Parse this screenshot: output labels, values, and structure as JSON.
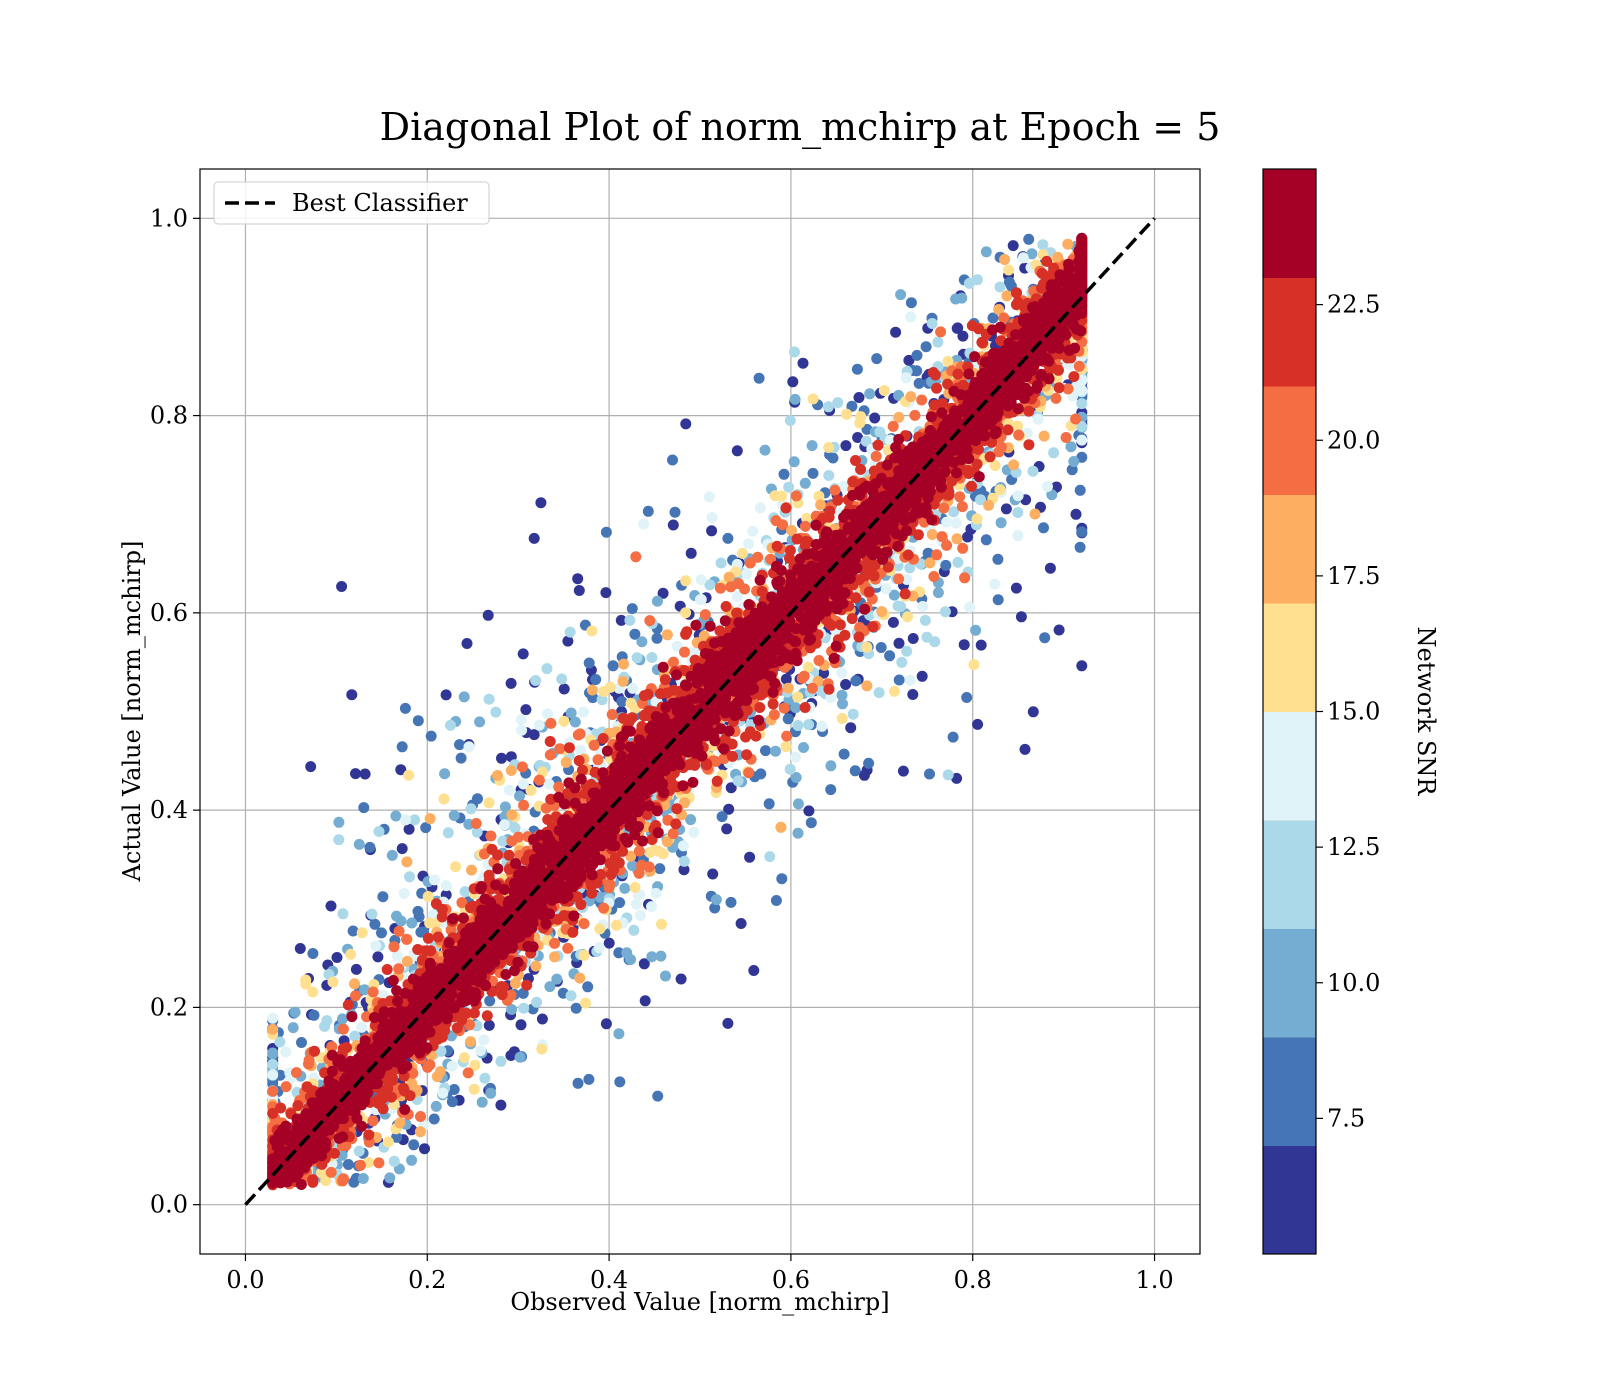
{
  "chart_data": {
    "type": "scatter",
    "title": "Diagonal Plot of norm_mchirp at Epoch = 5",
    "xlabel": "Observed Value [norm_mchirp]",
    "ylabel": "Actual Value [norm_mchirp]",
    "xlim": [
      -0.05,
      1.05
    ],
    "ylim": [
      -0.05,
      1.05
    ],
    "xticks": [
      "0.0",
      "0.2",
      "0.4",
      "0.6",
      "0.8",
      "1.0"
    ],
    "yticks": [
      "0.0",
      "0.2",
      "0.4",
      "0.6",
      "0.8",
      "1.0"
    ],
    "grid": true,
    "legend": {
      "placement": "top-left",
      "entries": [
        {
          "label": "Best Classifier",
          "style": "black-dashed-line"
        }
      ]
    },
    "reference_line": {
      "name": "Best Classifier",
      "x": [
        0,
        1
      ],
      "y": [
        0,
        1
      ],
      "color": "#000000"
    },
    "point_count_estimate": 20000,
    "point_distribution": "dense scatter concentrated along y = x (observed ≈ 0.03–0.92, actual ≈ 0.0–1.0); high-SNR points hug the diagonal, low-SNR points spread widely",
    "colorbar": {
      "label": "Network SNR",
      "range": [
        5.0,
        25.0
      ],
      "tick_values": [
        7.5,
        10.0,
        12.5,
        15.0,
        17.5,
        20.0,
        22.5
      ],
      "tick_labels": [
        "7.5",
        "10.0",
        "12.5",
        "15.0",
        "17.5",
        "20.0",
        "22.5"
      ],
      "colors": [
        "#313695",
        "#4575b4",
        "#74add1",
        "#abd9e9",
        "#e0f3f8",
        "#fee090",
        "#fdae61",
        "#f46d43",
        "#d73027",
        "#a50026"
      ]
    }
  }
}
